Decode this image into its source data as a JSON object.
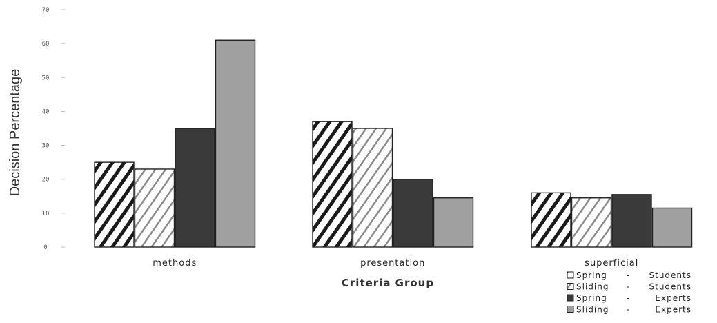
{
  "chart_data": {
    "type": "bar",
    "xlabel": "Criteria Group",
    "ylabel": "Decision Percentage",
    "ylim": [
      0,
      70
    ],
    "yticks": [
      0,
      10,
      20,
      30,
      40,
      50,
      60,
      70
    ],
    "categories": [
      "methods",
      "presentation",
      "superficial"
    ],
    "series": [
      {
        "name": "Spring",
        "group": "Students",
        "values": [
          25,
          37,
          16
        ],
        "pattern": "hatch-bold",
        "color": "#222222"
      },
      {
        "name": "Sliding",
        "group": "Students",
        "values": [
          23,
          35,
          14.5
        ],
        "pattern": "hatch-light",
        "color": "#888888"
      },
      {
        "name": "Spring",
        "group": "Experts",
        "values": [
          35,
          20,
          15.5
        ],
        "pattern": "solid",
        "color": "#3a3a3a"
      },
      {
        "name": "Sliding",
        "group": "Experts",
        "values": [
          61,
          14.5,
          11.5
        ],
        "pattern": "solid",
        "color": "#a0a0a0"
      }
    ],
    "legend_position": "bottom-right",
    "grid": false
  }
}
